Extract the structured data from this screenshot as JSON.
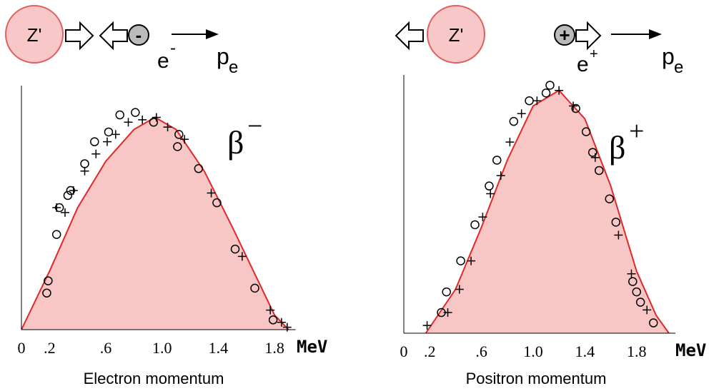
{
  "chart_data": [
    {
      "type": "scatter",
      "xlabel": "Electron momentum",
      "x_unit": "MeV",
      "symbol": "β",
      "symbol_sup": "−",
      "diagram": {
        "nucleus": "Z'",
        "charge": "-",
        "particle": "e",
        "particle_sup": "-",
        "momentum": "p",
        "momentum_sub": "e"
      },
      "xlim": [
        0,
        1.95
      ],
      "ylim": [
        0,
        100
      ],
      "xticks": [
        0,
        {
          "value": 0.2,
          "label": ".2"
        },
        {
          "value": 0.6,
          "label": ".6"
        },
        {
          "value": 1,
          "label": "1.0"
        },
        1.4,
        1.8
      ],
      "series": [
        {
          "marker": "area",
          "color": "#e02828",
          "fill": "#f9c6c6",
          "x": [
            0,
            0.2,
            0.4,
            0.6,
            0.8,
            0.95,
            1.1,
            1.3,
            1.5,
            1.7,
            1.8,
            1.9
          ],
          "values": [
            0,
            24,
            50,
            69,
            82,
            87,
            82,
            65,
            42,
            18,
            6,
            0
          ]
        },
        {
          "marker": "circle",
          "color": "#000000",
          "x": [
            0.18,
            0.19,
            0.25,
            0.27,
            0.33,
            0.35,
            0.45,
            0.52,
            0.62,
            0.7,
            0.81,
            0.94,
            1.11,
            1.12,
            1.26,
            1.39,
            1.52,
            1.66,
            1.79
          ],
          "values": [
            15,
            20,
            39,
            50,
            55,
            57,
            68,
            77,
            81,
            88,
            89,
            85,
            75,
            80,
            66,
            52,
            33,
            17,
            4
          ]
        },
        {
          "marker": "plus",
          "color": "#000000",
          "x": [
            0.25,
            0.31,
            0.37,
            0.45,
            0.53,
            0.61,
            0.67,
            0.76,
            0.86,
            0.96,
            1.04,
            1.16,
            1.35,
            1.57,
            1.77,
            1.85,
            1.89
          ],
          "values": [
            50,
            48,
            57,
            65,
            72,
            77,
            80,
            85,
            86,
            87,
            83,
            78,
            56,
            30,
            8,
            3,
            1
          ]
        }
      ]
    },
    {
      "type": "scatter",
      "xlabel": "Positron momentum",
      "x_unit": "MeV",
      "symbol": "β",
      "symbol_sup": "+",
      "diagram": {
        "nucleus": "Z'",
        "charge": "+",
        "particle": "e",
        "particle_sup": "+",
        "momentum": "p",
        "momentum_sub": "e"
      },
      "xlim": [
        0,
        2.1
      ],
      "ylim": [
        0,
        100
      ],
      "xticks": [
        0,
        {
          "value": 0.2,
          "label": ".2"
        },
        {
          "value": 0.6,
          "label": ".6"
        },
        {
          "value": 1,
          "label": "1.0"
        },
        1.4,
        1.8
      ],
      "series": [
        {
          "marker": "area",
          "color": "#e02828",
          "fill": "#f9c6c6",
          "x": [
            0.17,
            0.4,
            0.6,
            0.8,
            1.0,
            1.2,
            1.4,
            1.6,
            1.8,
            1.95,
            2.05
          ],
          "values": [
            0,
            17,
            41,
            67,
            88,
            94,
            83,
            57,
            24,
            7,
            0
          ]
        },
        {
          "marker": "circle",
          "color": "#000000",
          "x": [
            0.29,
            0.33,
            0.44,
            0.55,
            0.66,
            0.72,
            0.85,
            0.97,
            1.1,
            1.13,
            1.33,
            1.41,
            1.46,
            1.51,
            1.59,
            1.64,
            1.77,
            1.8,
            1.83,
            1.93
          ],
          "values": [
            8,
            16,
            28,
            42,
            57,
            67,
            82,
            90,
            93,
            96,
            87,
            78,
            70,
            63,
            52,
            43,
            20,
            16,
            12,
            4
          ]
        },
        {
          "marker": "plus",
          "color": "#000000",
          "x": [
            0.18,
            0.34,
            0.43,
            0.52,
            0.61,
            0.67,
            0.75,
            0.82,
            0.91,
            1.03,
            1.2,
            1.31,
            1.48,
            1.66,
            1.76,
            1.88
          ],
          "values": [
            3,
            8,
            17,
            28,
            45,
            54,
            61,
            74,
            85,
            90,
            94,
            88,
            68,
            38,
            23,
            9
          ]
        }
      ]
    }
  ]
}
